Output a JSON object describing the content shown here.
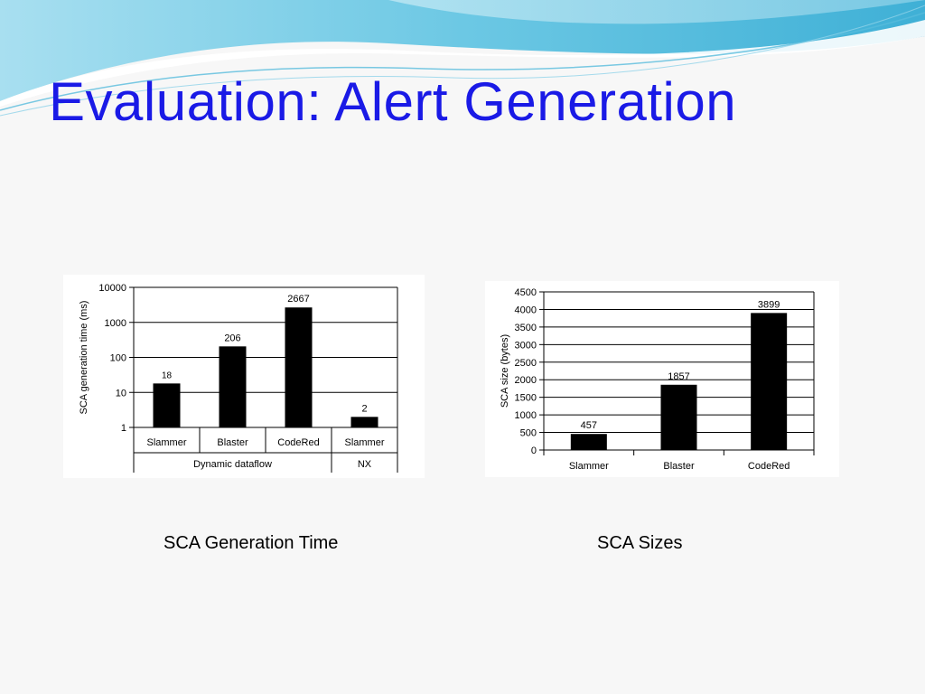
{
  "slide": {
    "title": "Evaluation: Alert Generation",
    "accent_color": "#1a1ae6",
    "captions": [
      "SCA Generation Time",
      "SCA Sizes"
    ]
  },
  "chart_data": [
    {
      "type": "bar",
      "title": "",
      "ylabel": "SCA generation time (ms)",
      "xlabel": "",
      "yscale": "log",
      "ylim": [
        1,
        10000
      ],
      "yticks": [
        "1",
        "10",
        "100",
        "1000",
        "10000"
      ],
      "categories": [
        "Slammer",
        "Blaster",
        "CodeRed",
        "Slammer"
      ],
      "groups": [
        {
          "label": "Dynamic dataflow",
          "categories": [
            "Slammer",
            "Blaster",
            "CodeRed"
          ]
        },
        {
          "label": "NX",
          "categories": [
            "Slammer"
          ]
        }
      ],
      "values": [
        18,
        206,
        2667,
        2
      ],
      "data_labels": [
        "18",
        "206",
        "2667",
        "2"
      ],
      "bar_color": "#000000",
      "grid": true
    },
    {
      "type": "bar",
      "title": "",
      "ylabel": "SCA size (bytes)",
      "xlabel": "",
      "ylim": [
        0,
        4500
      ],
      "yticks": [
        "0",
        "500",
        "1000",
        "1500",
        "2000",
        "2500",
        "3000",
        "3500",
        "4000",
        "4500"
      ],
      "categories": [
        "Slammer",
        "Blaster",
        "CodeRed"
      ],
      "values": [
        457,
        1857,
        3899
      ],
      "data_labels": [
        "457",
        "1857",
        "3899"
      ],
      "bar_color": "#000000",
      "grid": true
    }
  ]
}
